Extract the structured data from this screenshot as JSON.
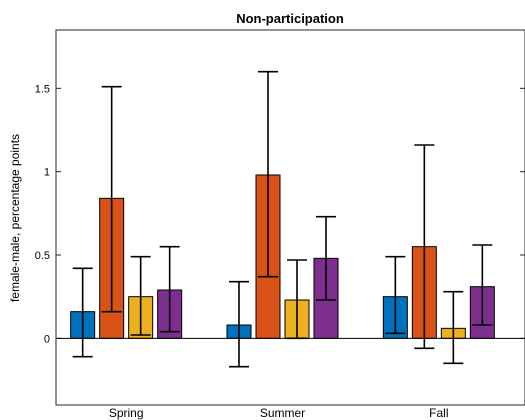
{
  "chart_data": {
    "type": "bar",
    "title": "Non-participation",
    "xlabel": "",
    "ylabel": "female-male, percentage points",
    "categories": [
      "Spring",
      "Summer",
      "Fall"
    ],
    "ylim": [
      -0.4,
      1.85
    ],
    "yticks": [
      0,
      0.5,
      1,
      1.5
    ],
    "ytick_labels": [
      "0",
      "0.5",
      "1",
      "1.5"
    ],
    "grid": false,
    "legend": "none",
    "series": [
      {
        "color": "#0072BD",
        "values": [
          0.16,
          0.08,
          0.25
        ],
        "err_low": [
          -0.11,
          -0.17,
          0.03
        ],
        "err_high": [
          0.42,
          0.34,
          0.49
        ]
      },
      {
        "color": "#D95319",
        "values": [
          0.84,
          0.98,
          0.55
        ],
        "err_low": [
          0.16,
          0.37,
          -0.06
        ],
        "err_high": [
          1.51,
          1.6,
          1.16
        ]
      },
      {
        "color": "#EDB120",
        "values": [
          0.25,
          0.23,
          0.06
        ],
        "err_low": [
          0.02,
          0.0,
          -0.15
        ],
        "err_high": [
          0.49,
          0.47,
          0.28
        ]
      },
      {
        "color": "#7E2F8E",
        "values": [
          0.29,
          0.48,
          0.31
        ],
        "err_low": [
          0.04,
          0.23,
          0.08
        ],
        "err_high": [
          0.55,
          0.73,
          0.56
        ]
      }
    ]
  }
}
